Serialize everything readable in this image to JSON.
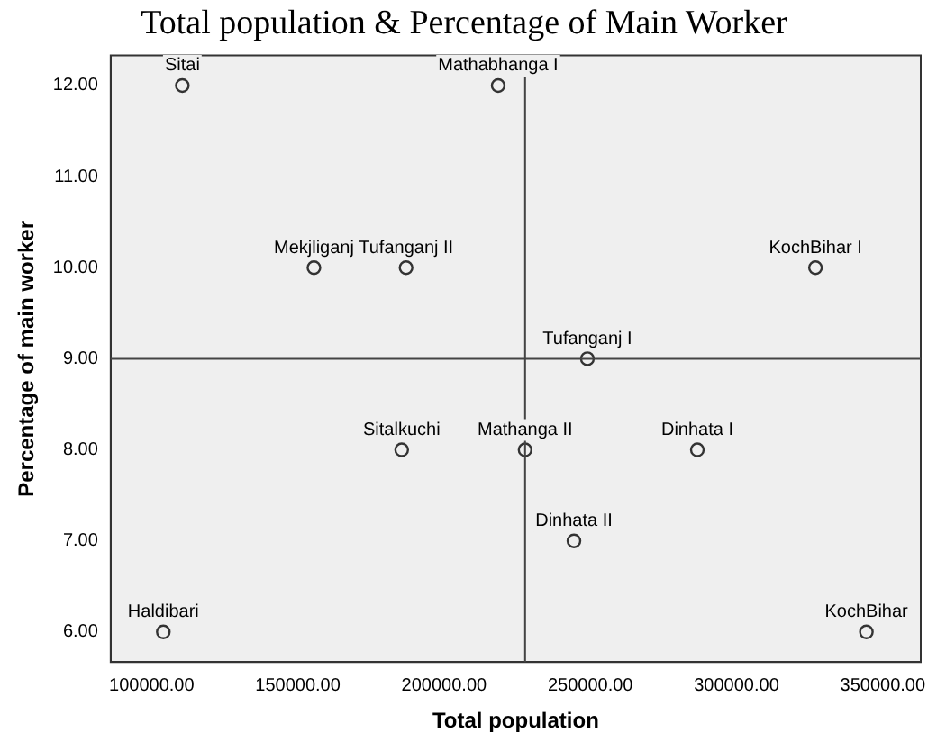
{
  "chart_data": {
    "type": "scatter",
    "title": "Total population & Percentage of Main Worker",
    "xlabel": "Total population",
    "ylabel": "Percentage of main worker",
    "x": [
      110500,
      218500,
      155500,
      187000,
      327000,
      249000,
      185500,
      227700,
      286600,
      244400,
      104000,
      344400
    ],
    "values": [
      12,
      12,
      10,
      10,
      10,
      9,
      8,
      8,
      8,
      7,
      6,
      6
    ],
    "color": "#333333",
    "marker": "circle",
    "grid": false,
    "xlim": [
      86000,
      363000
    ],
    "ylim": [
      5.67,
      12.33
    ],
    "xticks": [
      {
        "value": 100000,
        "label": "100000.00"
      },
      {
        "value": 150000,
        "label": "150000.00"
      },
      {
        "value": 200000,
        "label": "200000.00"
      },
      {
        "value": 250000,
        "label": "250000.00"
      },
      {
        "value": 300000,
        "label": "300000.00"
      },
      {
        "value": 350000,
        "label": "350000.00"
      }
    ],
    "yticks": [
      {
        "value": 6,
        "label": "6.00"
      },
      {
        "value": 7,
        "label": "7.00"
      },
      {
        "value": 8,
        "label": "8.00"
      },
      {
        "value": 9,
        "label": "9.00"
      },
      {
        "value": 10,
        "label": "10.00"
      },
      {
        "value": 11,
        "label": "11.00"
      },
      {
        "value": 12,
        "label": "12.00"
      }
    ],
    "ref_lines": [
      {
        "axis": "x",
        "value": 227700
      },
      {
        "axis": "y",
        "value": 9
      }
    ],
    "annotations": [
      {
        "text": "Sitai",
        "x": 110500,
        "y": 12
      },
      {
        "text": "Mathabhanga I",
        "x": 218500,
        "y": 12
      },
      {
        "text": "Mekjliganj",
        "x": 155500,
        "y": 10
      },
      {
        "text": "Tufanganj II",
        "x": 187000,
        "y": 10
      },
      {
        "text": "KochBihar I",
        "x": 327000,
        "y": 10
      },
      {
        "text": "Tufanganj I",
        "x": 249000,
        "y": 9
      },
      {
        "text": "Sitalkuchi",
        "x": 185500,
        "y": 8
      },
      {
        "text": "Mathanga II",
        "x": 227700,
        "y": 8
      },
      {
        "text": "Dinhata I",
        "x": 286600,
        "y": 8
      },
      {
        "text": "Dinhata II",
        "x": 244400,
        "y": 7
      },
      {
        "text": "Haldibari",
        "x": 104000,
        "y": 6
      },
      {
        "text": "KochBihar",
        "x": 344400,
        "y": 6
      }
    ]
  }
}
